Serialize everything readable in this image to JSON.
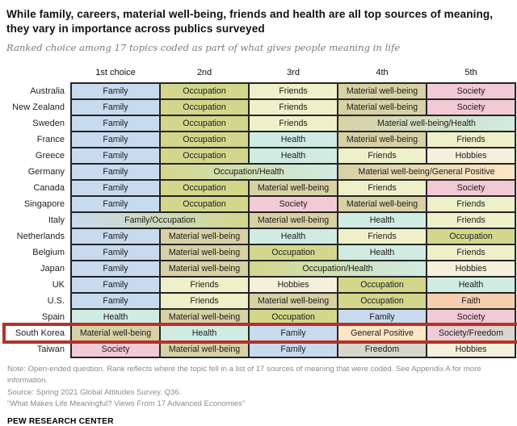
{
  "header": {
    "title": "While family, careers, material well-being, friends and health are all top sources of meaning, they vary in importance across publics surveyed",
    "subtitle": "Ranked choice among 17 topics coded as part of what gives people meaning in life"
  },
  "chart_data": {
    "type": "table",
    "columns": [
      "1st choice",
      "2nd",
      "3rd",
      "4th",
      "5th"
    ],
    "rows": [
      {
        "country": "Australia",
        "cells": [
          {
            "label": "Family",
            "span": 1
          },
          {
            "label": "Occupation",
            "span": 1
          },
          {
            "label": "Friends",
            "span": 1
          },
          {
            "label": "Material well-being",
            "span": 1
          },
          {
            "label": "Society",
            "span": 1
          }
        ]
      },
      {
        "country": "New Zealand",
        "cells": [
          {
            "label": "Family",
            "span": 1
          },
          {
            "label": "Occupation",
            "span": 1
          },
          {
            "label": "Friends",
            "span": 1
          },
          {
            "label": "Material well-being",
            "span": 1
          },
          {
            "label": "Society",
            "span": 1
          }
        ]
      },
      {
        "country": "Sweden",
        "cells": [
          {
            "label": "Family",
            "span": 1
          },
          {
            "label": "Occupation",
            "span": 1
          },
          {
            "label": "Friends",
            "span": 1
          },
          {
            "label": "Material well-being/Health",
            "span": 2
          }
        ]
      },
      {
        "country": "France",
        "cells": [
          {
            "label": "Family",
            "span": 1
          },
          {
            "label": "Occupation",
            "span": 1
          },
          {
            "label": "Health",
            "span": 1
          },
          {
            "label": "Material well-being",
            "span": 1
          },
          {
            "label": "Friends",
            "span": 1
          }
        ]
      },
      {
        "country": "Greece",
        "cells": [
          {
            "label": "Family",
            "span": 1
          },
          {
            "label": "Occupation",
            "span": 1
          },
          {
            "label": "Health",
            "span": 1
          },
          {
            "label": "Friends",
            "span": 1
          },
          {
            "label": "Hobbies",
            "span": 1
          }
        ]
      },
      {
        "country": "Germany",
        "cells": [
          {
            "label": "Family",
            "span": 1
          },
          {
            "label": "Occupation/Health",
            "span": 2
          },
          {
            "label": "Material well-being/General Positive",
            "span": 2
          }
        ]
      },
      {
        "country": "Canada",
        "cells": [
          {
            "label": "Family",
            "span": 1
          },
          {
            "label": "Occupation",
            "span": 1
          },
          {
            "label": "Material well-being",
            "span": 1
          },
          {
            "label": "Friends",
            "span": 1
          },
          {
            "label": "Society",
            "span": 1
          }
        ]
      },
      {
        "country": "Singapore",
        "cells": [
          {
            "label": "Family",
            "span": 1
          },
          {
            "label": "Occupation",
            "span": 1
          },
          {
            "label": "Society",
            "span": 1
          },
          {
            "label": "Material well-being",
            "span": 1
          },
          {
            "label": "Friends",
            "span": 1
          }
        ]
      },
      {
        "country": "Italy",
        "cells": [
          {
            "label": "Family/Occupation",
            "span": 2
          },
          {
            "label": "Material well-being",
            "span": 1
          },
          {
            "label": "Health",
            "span": 1
          },
          {
            "label": "Friends",
            "span": 1
          }
        ]
      },
      {
        "country": "Netherlands",
        "cells": [
          {
            "label": "Family",
            "span": 1
          },
          {
            "label": "Material well-being",
            "span": 1
          },
          {
            "label": "Health",
            "span": 1
          },
          {
            "label": "Friends",
            "span": 1
          },
          {
            "label": "Occupation",
            "span": 1
          }
        ]
      },
      {
        "country": "Belgium",
        "cells": [
          {
            "label": "Family",
            "span": 1
          },
          {
            "label": "Material well-being",
            "span": 1
          },
          {
            "label": "Occupation",
            "span": 1
          },
          {
            "label": "Health",
            "span": 1
          },
          {
            "label": "Friends",
            "span": 1
          }
        ]
      },
      {
        "country": "Japan",
        "cells": [
          {
            "label": "Family",
            "span": 1
          },
          {
            "label": "Material well-being",
            "span": 1
          },
          {
            "label": "Occupation/Health",
            "span": 2
          },
          {
            "label": "Hobbies",
            "span": 1
          }
        ]
      },
      {
        "country": "UK",
        "cells": [
          {
            "label": "Family",
            "span": 1
          },
          {
            "label": "Friends",
            "span": 1
          },
          {
            "label": "Hobbies",
            "span": 1
          },
          {
            "label": "Occupation",
            "span": 1
          },
          {
            "label": "Health",
            "span": 1
          }
        ]
      },
      {
        "country": "U.S.",
        "cells": [
          {
            "label": "Family",
            "span": 1
          },
          {
            "label": "Friends",
            "span": 1
          },
          {
            "label": "Material well-being",
            "span": 1
          },
          {
            "label": "Occupation",
            "span": 1
          },
          {
            "label": "Faith",
            "span": 1
          }
        ]
      },
      {
        "country": "Spain",
        "cells": [
          {
            "label": "Health",
            "span": 1
          },
          {
            "label": "Material well-being",
            "span": 1
          },
          {
            "label": "Occupation",
            "span": 1
          },
          {
            "label": "Family",
            "span": 1
          },
          {
            "label": "Society",
            "span": 1
          }
        ]
      },
      {
        "country": "South Korea",
        "cells": [
          {
            "label": "Material well-being",
            "span": 1
          },
          {
            "label": "Health",
            "span": 1
          },
          {
            "label": "Family",
            "span": 1
          },
          {
            "label": "General Positive",
            "span": 1
          },
          {
            "label": "Society/Freedom",
            "span": 1
          }
        ],
        "highlighted": true
      },
      {
        "country": "Taiwan",
        "cells": [
          {
            "label": "Society",
            "span": 1
          },
          {
            "label": "Material well-being",
            "span": 1
          },
          {
            "label": "Family",
            "span": 1
          },
          {
            "label": "Freedom",
            "span": 1
          },
          {
            "label": "Hobbies",
            "span": 1
          }
        ]
      }
    ],
    "category_colors": {
      "Family": "#c8daee",
      "Occupation": "#d2d78b",
      "Friends": "#eef0ca",
      "Material well-being": "#d7d1a5",
      "Society": "#f2cad5",
      "Health": "#d0ebe2",
      "Hobbies": "#f4f0da",
      "General Positive": "#fde6c4",
      "Faith": "#f6cdb0",
      "Freedom": "#d8d7cc"
    },
    "highlight_color": "#b5312c"
  },
  "footer": {
    "note": "Note: Open-ended question. Rank reflects where the topic fell in a list of 17 sources of meaning that were coded. See Appendix A for more information.",
    "source": "Source: Spring 2021 Global Attitudes Survey. Q36.",
    "report": "“What Makes Life Meaningful? Views From 17 Advanced Economies”",
    "brand": "PEW RESEARCH CENTER"
  }
}
